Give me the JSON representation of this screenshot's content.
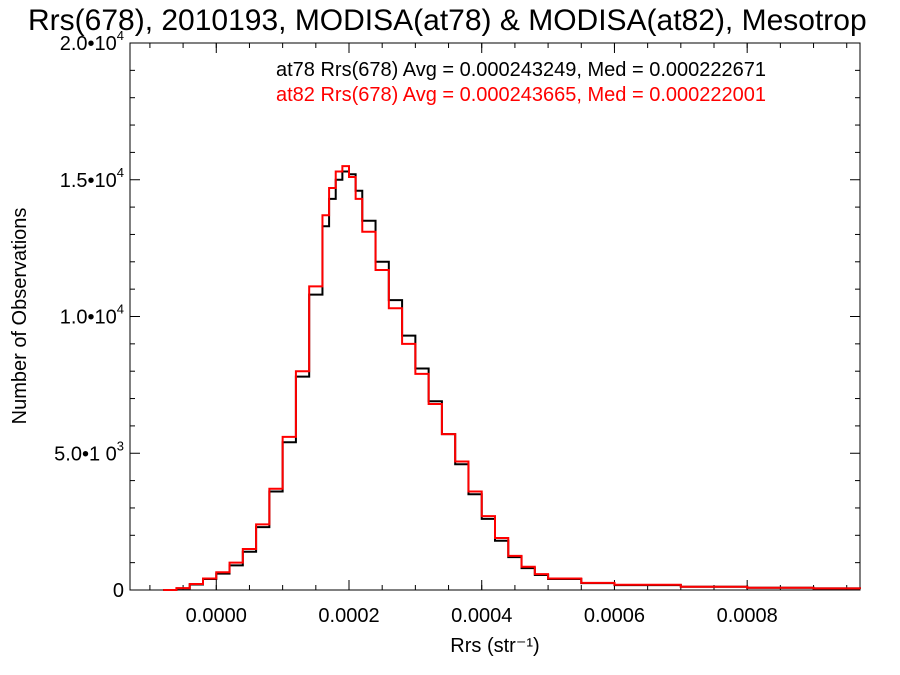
{
  "chart_data": {
    "type": "line",
    "title": "Rrs(678), 2010193, MODISA(at78) & MODISA(at82), Mesotrop",
    "xlabel": "Rrs (str⁻¹)",
    "ylabel": "Number of Observations",
    "xlim": [
      -0.00013,
      0.00097
    ],
    "ylim": [
      0,
      20000
    ],
    "x_ticks": [
      0.0,
      0.0002,
      0.0004,
      0.0006,
      0.0008
    ],
    "x_tick_labels": [
      "0.0000",
      "0.0002",
      "0.0004",
      "0.0006",
      "0.0008"
    ],
    "y_ticks": [
      0,
      5000,
      10000,
      15000,
      20000
    ],
    "y_tick_labels": [
      {
        "base": "0",
        "exp": ""
      },
      {
        "base": "5.0•1 0",
        "exp": "3"
      },
      {
        "base": "1.0•10",
        "exp": "4"
      },
      {
        "base": "1.5•10",
        "exp": "4"
      },
      {
        "base": "2.0•10",
        "exp": "4"
      }
    ],
    "grid": false,
    "legend_position": "top-right",
    "series": [
      {
        "name": "at78",
        "color": "#000000",
        "legend_text": "at78 Rrs(678) Avg = 0.000243249, Med = 0.000222671",
        "x": [
          -8e-05,
          -6e-05,
          -4e-05,
          -2e-05,
          0.0,
          2e-05,
          4e-05,
          6e-05,
          8e-05,
          0.0001,
          0.00012,
          0.00014,
          0.00016,
          0.00017,
          0.00018,
          0.00019,
          0.0002,
          0.00021,
          0.00022,
          0.00024,
          0.00026,
          0.00028,
          0.0003,
          0.00032,
          0.00034,
          0.00036,
          0.00038,
          0.0004,
          0.00042,
          0.00044,
          0.00046,
          0.00048,
          0.0005,
          0.00055,
          0.0006,
          0.0007,
          0.0008,
          0.0009,
          0.00097
        ],
        "values": [
          0,
          60,
          200,
          400,
          600,
          900,
          1400,
          2300,
          3600,
          5400,
          7800,
          10800,
          13300,
          14300,
          15000,
          15300,
          15200,
          14600,
          13500,
          12000,
          10600,
          9300,
          8100,
          6900,
          5700,
          4600,
          3500,
          2600,
          1800,
          1200,
          800,
          550,
          400,
          250,
          180,
          120,
          80,
          60,
          40
        ]
      },
      {
        "name": "at82",
        "color": "#ff0000",
        "legend_text": "at82 Rrs(678) Avg = 0.000243665, Med = 0.000222001",
        "x": [
          -8e-05,
          -6e-05,
          -4e-05,
          -2e-05,
          0.0,
          2e-05,
          4e-05,
          6e-05,
          8e-05,
          0.0001,
          0.00012,
          0.00014,
          0.00016,
          0.00017,
          0.00018,
          0.00019,
          0.0002,
          0.00021,
          0.00022,
          0.00024,
          0.00026,
          0.00028,
          0.0003,
          0.00032,
          0.00034,
          0.00036,
          0.00038,
          0.0004,
          0.00042,
          0.00044,
          0.00046,
          0.00048,
          0.0005,
          0.00055,
          0.0006,
          0.0007,
          0.0008,
          0.0009,
          0.00097
        ],
        "values": [
          0,
          70,
          220,
          420,
          650,
          1000,
          1500,
          2400,
          3700,
          5600,
          8000,
          11100,
          13700,
          14700,
          15300,
          15500,
          15100,
          14300,
          13100,
          11700,
          10300,
          9000,
          7900,
          6800,
          5700,
          4700,
          3600,
          2700,
          1900,
          1250,
          850,
          580,
          420,
          260,
          190,
          120,
          80,
          60,
          40
        ]
      }
    ]
  }
}
